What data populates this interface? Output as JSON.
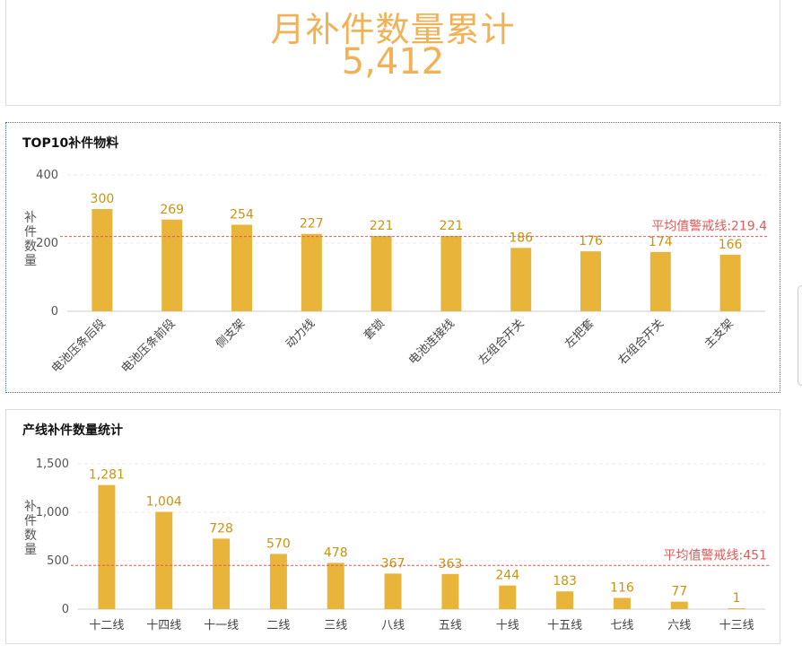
{
  "summary": {
    "title": "月补件数量累计",
    "value": "5,412"
  },
  "colors": {
    "bar": "#e8b53a",
    "label": "#c9940e",
    "threshold": "#e05a5a",
    "summary": "#f2b155",
    "axis": "#555555"
  },
  "chart_data": [
    {
      "type": "bar",
      "title": "TOP10补件物料",
      "ylabel": "补件数量",
      "ylim": [
        0,
        400
      ],
      "yticks": [
        0,
        200,
        400
      ],
      "categories": [
        "电池压条后段",
        "电池压条前段",
        "侧支架",
        "动力线",
        "套锁",
        "电池连接线",
        "左组合开关",
        "左把套",
        "右组合开关",
        "主支架"
      ],
      "values": [
        300,
        269,
        254,
        227,
        221,
        221,
        186,
        176,
        174,
        166
      ],
      "value_labels": [
        "300",
        "269",
        "254",
        "227",
        "221",
        "221",
        "186",
        "176",
        "174",
        "166"
      ],
      "threshold": {
        "label": "平均值警戒线:219.4",
        "value": 219.4
      },
      "grid": true,
      "rotated_xlabels": true
    },
    {
      "type": "bar",
      "title": "产线补件数量统计",
      "ylabel": "补件数量",
      "ylim": [
        0,
        1500
      ],
      "yticks": [
        0,
        500,
        1000,
        1500
      ],
      "ytick_labels": [
        "0",
        "500",
        "1,000",
        "1,500"
      ],
      "categories": [
        "十二线",
        "十四线",
        "十一线",
        "二线",
        "三线",
        "八线",
        "五线",
        "十线",
        "十五线",
        "七线",
        "六线",
        "十三线"
      ],
      "values": [
        1281,
        1004,
        728,
        570,
        478,
        367,
        363,
        244,
        183,
        116,
        77,
        1
      ],
      "value_labels": [
        "1,281",
        "1,004",
        "728",
        "570",
        "478",
        "367",
        "363",
        "244",
        "183",
        "116",
        "77",
        "1"
      ],
      "threshold": {
        "label": "平均值警戒线:451",
        "value": 451
      },
      "grid": true,
      "rotated_xlabels": false
    }
  ]
}
